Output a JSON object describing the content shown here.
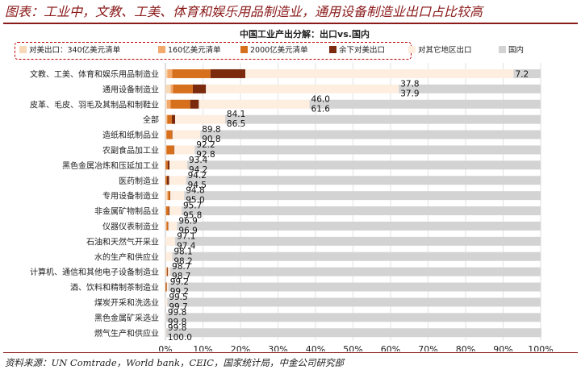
{
  "figure": {
    "title": "图表：工业中，文教、工美、体育和娱乐用品制造业，通用设备制造业出口占比较高",
    "source": "资料来源：UN Comtrade，World bank，CEIC，国家统计局，中金公司研究部"
  },
  "colors": {
    "brand": "#8b1a1a",
    "us_exports": "#f7d9b8",
    "tariff_160": "#f3a86c",
    "tariff_2000": "#d6701c",
    "remaining_us": "#7b2a0e",
    "other_exports": "#fdeee0",
    "domestic": "#d3d3d3"
  },
  "chart_data": {
    "type": "bar",
    "orientation": "horizontal",
    "stacked": true,
    "title": "中国工业产出分解：出口vs.国内",
    "xlim": [
      0,
      100
    ],
    "xticks": [
      "0%",
      "10%",
      "20%",
      "30%",
      "40%",
      "50%",
      "60%",
      "70%",
      "80%",
      "90%",
      "100%"
    ],
    "grid": "vertical",
    "legend_position": "top",
    "highlighted_legend_group": [
      "对美出口：340亿美元清单",
      "160亿美元清单",
      "2000亿美元清单",
      "余下对美出口"
    ],
    "categories": [
      "文教、工美、体育和娱乐用品制造业",
      "通用设备制造业",
      "皮革、毛皮、羽毛及其制品和制鞋业",
      "全部",
      "造纸和纸制品业",
      "农副食品加工业",
      "黑色金属冶炼和压延加工业",
      "医药制造业",
      "专用设备制造业",
      "非金属矿物制品业",
      "仪器仪表制造业",
      "石油和天然气开采业",
      "水的生产和供应业",
      "计算机、通信和其他电子设备制造业",
      "酒、饮料和精制茶制造业",
      "煤炭开采和洗选业",
      "黑色金属矿采选业",
      "燃气生产和供应业"
    ],
    "series": [
      {
        "name": "对美出口：340亿美元清单",
        "color": "#f7d9b8",
        "values": [
          0.5,
          1.4,
          0.4,
          0.3,
          0.2,
          0.2,
          0.0,
          0.0,
          0.5,
          0.1,
          0.2,
          0.0,
          0.1,
          0.2,
          0.0,
          0.0,
          0.0,
          0.0
        ]
      },
      {
        "name": "160亿美元清单",
        "color": "#f3a86c",
        "values": [
          1.3,
          0.6,
          1.0,
          0.2,
          0.1,
          0.1,
          0.1,
          0.0,
          0.2,
          0.1,
          0.1,
          0.0,
          0.0,
          0.2,
          0.0,
          0.0,
          0.0,
          0.0
        ]
      },
      {
        "name": "2000亿美元清单",
        "color": "#d6701c",
        "values": [
          10.2,
          5.3,
          5.2,
          1.2,
          1.5,
          2.0,
          0.5,
          0.4,
          0.5,
          0.7,
          0.4,
          0.0,
          0.0,
          0.1,
          0.3,
          0.0,
          0.0,
          0.0
        ]
      },
      {
        "name": "余下对美出口",
        "color": "#7b2a0e",
        "values": [
          9.3,
          3.5,
          2.3,
          0.9,
          0.1,
          0.1,
          0.5,
          0.6,
          0.1,
          0.2,
          0.1,
          0.0,
          0.0,
          0.2,
          0.1,
          0.0,
          0.0,
          0.0
        ]
      },
      {
        "name": "对其它地区出口",
        "color": "#fdeee0",
        "values": [
          71.5,
          51.4,
          29.5,
          13.3,
          7.4,
          5.4,
          4.7,
          4.5,
          3.7,
          3.2,
          2.3,
          2.6,
          1.7,
          0.6,
          0.4,
          0.5,
          0.2,
          0.2
        ]
      },
      {
        "name": "国内",
        "color": "#d3d3d3",
        "values": [
          7.2,
          37.8,
          61.6,
          84.1,
          90.8,
          92.2,
          94.2,
          94.5,
          95.0,
          95.7,
          96.9,
          97.4,
          98.2,
          98.7,
          99.2,
          99.5,
          99.8,
          100.0
        ]
      }
    ],
    "data_labels": [
      {
        "category": "文教、工美、体育和娱乐用品制造业",
        "value": "7.2"
      },
      {
        "category": "通用设备制造业",
        "value": "37.8"
      },
      {
        "category": "通用设备制造业",
        "value": "37.9"
      },
      {
        "category": "皮革、毛皮、羽毛及其制品和制鞋业",
        "value": "46.0"
      },
      {
        "category": "皮革、毛皮、羽毛及其制品和制鞋业",
        "value": "61.6"
      },
      {
        "category": "全部",
        "value": "84.1"
      },
      {
        "category": "全部",
        "value": "86.5"
      },
      {
        "category": "造纸和纸制品业",
        "value": "89.8"
      },
      {
        "category": "造纸和纸制品业",
        "value": "90.8"
      },
      {
        "category": "农副食品加工业",
        "value": "92.2"
      },
      {
        "category": "农副食品加工业",
        "value": "92.8"
      },
      {
        "category": "黑色金属冶炼和压延加工业",
        "value": "93.4"
      },
      {
        "category": "黑色金属冶炼和压延加工业",
        "value": "94.2"
      },
      {
        "category": "医药制造业",
        "value": "94.2"
      },
      {
        "category": "医药制造业",
        "value": "94.5"
      },
      {
        "category": "专用设备制造业",
        "value": "94.8"
      },
      {
        "category": "专用设备制造业",
        "value": "95.0"
      },
      {
        "category": "非金属矿物制品业",
        "value": "95.7"
      },
      {
        "category": "非金属矿物制品业",
        "value": "95.8"
      },
      {
        "category": "仪器仪表制造业",
        "value": "96.9"
      },
      {
        "category": "仪器仪表制造业",
        "value": "96.9"
      },
      {
        "category": "石油和天然气开采业",
        "value": "97.1"
      },
      {
        "category": "石油和天然气开采业",
        "value": "97.4"
      },
      {
        "category": "水的生产和供应业",
        "value": "98.1"
      },
      {
        "category": "水的生产和供应业",
        "value": "98.2"
      },
      {
        "category": "计算机、通信和其他电子设备制造业",
        "value": "98.7"
      },
      {
        "category": "计算机、通信和其他电子设备制造业",
        "value": "98.7"
      },
      {
        "category": "酒、饮料和精制茶制造业",
        "value": "99.2"
      },
      {
        "category": "酒、饮料和精制茶制造业",
        "value": "99.2"
      },
      {
        "category": "煤炭开采和洗选业",
        "value": "99.5"
      },
      {
        "category": "煤炭开采和洗选业",
        "value": "99.7"
      },
      {
        "category": "黑色金属矿采选业",
        "value": "99.8"
      },
      {
        "category": "黑色金属矿采选业",
        "value": "99.8"
      },
      {
        "category": "燃气生产和供应业",
        "value": "99.8"
      },
      {
        "category": "燃气生产和供应业",
        "value": "100.0"
      }
    ]
  }
}
